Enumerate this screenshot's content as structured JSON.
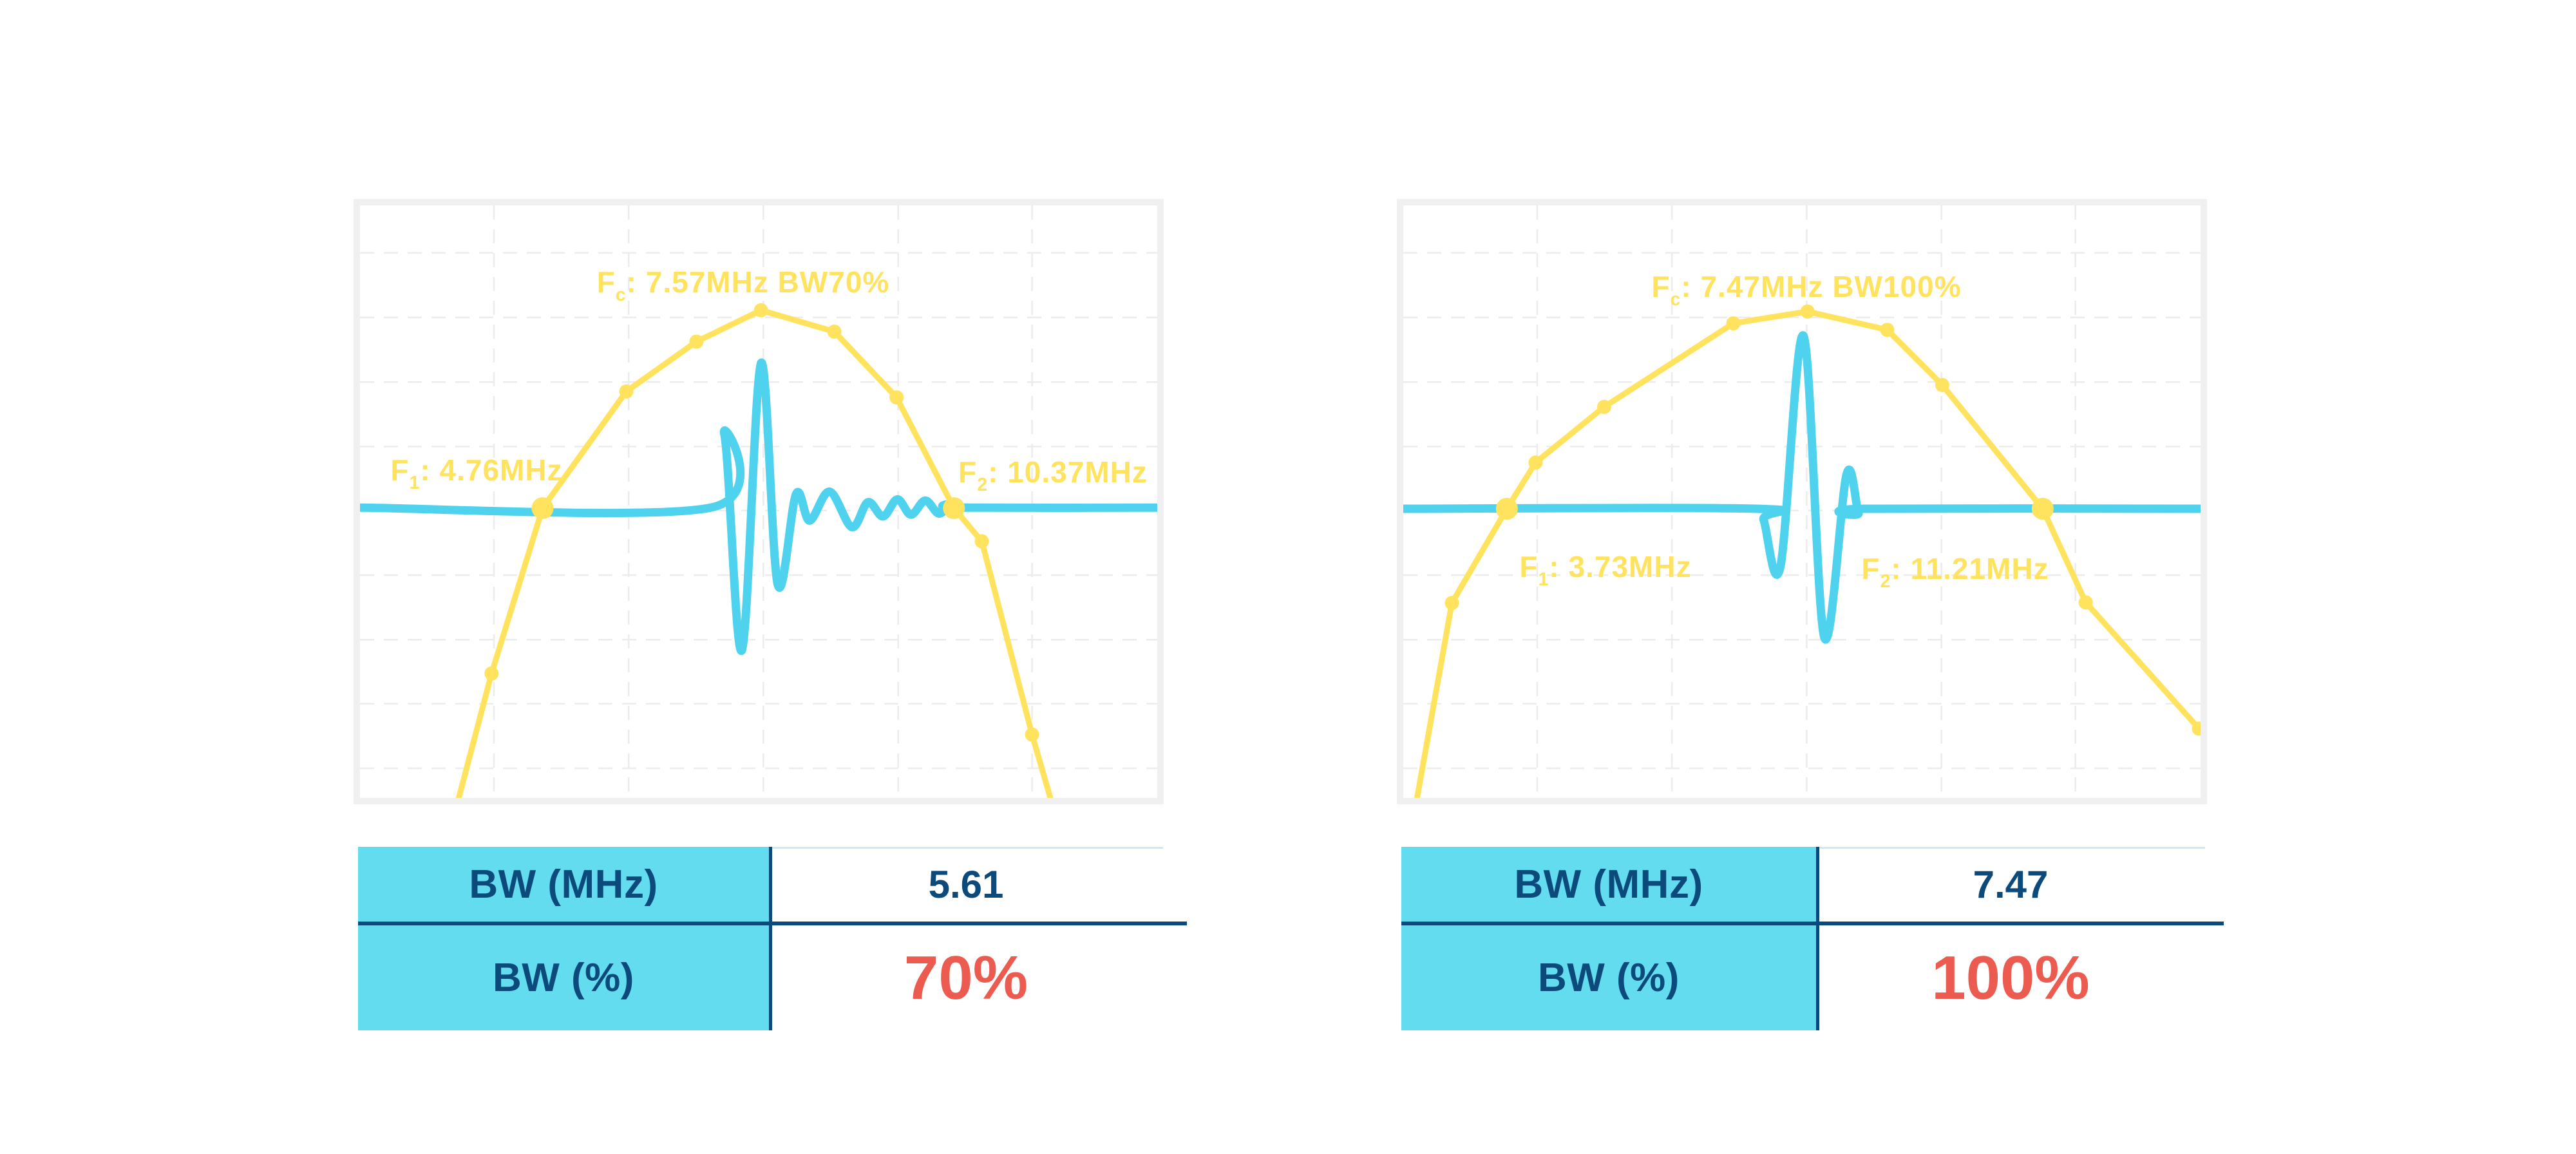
{
  "colors": {
    "spectrum_yellow": "#FFE35F",
    "wave_cyan": "#4FD2ED",
    "table_cyan": "#63DCEF",
    "navy": "#0B4A7A",
    "accent_red": "#EC5B50",
    "grid": "#ECECEC",
    "panel_border": "#F0F0F0",
    "pale_rule": "#CBEAF4"
  },
  "chart_data": [
    {
      "type": "line",
      "name": "pulse-spectrum-bw70",
      "fc_mhz": 7.57,
      "f1_mhz": 4.76,
      "f2_mhz": 10.37,
      "bw_mhz": 5.61,
      "bw_percent": 70,
      "labels": {
        "fc": {
          "prefix": "F",
          "sub": "c",
          "text": ": 7.57MHz BW70%",
          "x": 0.481,
          "y": 0.135
        },
        "f1": {
          "prefix": "F",
          "sub": "1",
          "text": ": 4.76MHz",
          "x": 0.146,
          "y": 0.452
        },
        "f2": {
          "prefix": "F",
          "sub": "2",
          "text": ": 10.37MHz",
          "x": 0.869,
          "y": 0.455
        }
      },
      "grid": {
        "v": [
          0.168,
          0.337,
          0.506,
          0.675,
          0.843
        ],
        "h": [
          0.08,
          0.189,
          0.298,
          0.407,
          0.515,
          0.624,
          0.733,
          0.841,
          0.95
        ]
      },
      "baseline_y": 0.51,
      "spectrum": {
        "points": [
          [
            0.122,
            1.01,
            0
          ],
          [
            0.165,
            0.79,
            1
          ],
          [
            0.229,
            0.511,
            2
          ],
          [
            0.334,
            0.314,
            1
          ],
          [
            0.422,
            0.23,
            1
          ],
          [
            0.503,
            0.177,
            1
          ],
          [
            0.595,
            0.213,
            1
          ],
          [
            0.673,
            0.324,
            1
          ],
          [
            0.745,
            0.511,
            2
          ],
          [
            0.78,
            0.567,
            1
          ],
          [
            0.843,
            0.893,
            1
          ],
          [
            0.868,
            1.01,
            0
          ]
        ]
      },
      "pulse": {
        "points": [
          [
            0.0,
            0.51
          ],
          [
            0.44,
            0.51
          ],
          [
            0.457,
            0.387
          ],
          [
            0.479,
            0.751
          ],
          [
            0.503,
            0.266
          ],
          [
            0.524,
            0.64
          ],
          [
            0.547,
            0.487
          ],
          [
            0.564,
            0.532
          ],
          [
            0.589,
            0.483
          ],
          [
            0.617,
            0.543
          ],
          [
            0.637,
            0.501
          ],
          [
            0.656,
            0.525
          ],
          [
            0.674,
            0.496
          ],
          [
            0.691,
            0.522
          ],
          [
            0.709,
            0.498
          ],
          [
            0.726,
            0.52
          ],
          [
            0.742,
            0.504
          ],
          [
            0.751,
            0.51
          ],
          [
            1.0,
            0.51
          ]
        ]
      }
    },
    {
      "type": "line",
      "name": "pulse-spectrum-bw100",
      "fc_mhz": 7.47,
      "f1_mhz": 3.73,
      "f2_mhz": 11.21,
      "bw_mhz": 7.47,
      "bw_percent": 100,
      "labels": {
        "fc": {
          "prefix": "F",
          "sub": "c",
          "text": ": 7.47MHz BW100%",
          "x": 0.506,
          "y": 0.142
        },
        "f1": {
          "prefix": "F",
          "sub": "1",
          "text": ": 3.73MHz",
          "x": 0.254,
          "y": 0.615
        },
        "f2": {
          "prefix": "F",
          "sub": "2",
          "text": ": 11.21MHz",
          "x": 0.692,
          "y": 0.618
        }
      },
      "grid": {
        "v": [
          0.168,
          0.337,
          0.506,
          0.675,
          0.843
        ],
        "h": [
          0.08,
          0.189,
          0.298,
          0.407,
          0.515,
          0.624,
          0.733,
          0.841,
          0.95
        ]
      },
      "baseline_y": 0.512,
      "spectrum": {
        "points": [
          [
            0.016,
            1.01,
            0
          ],
          [
            0.061,
            0.671,
            1
          ],
          [
            0.13,
            0.512,
            2
          ],
          [
            0.166,
            0.434,
            1
          ],
          [
            0.252,
            0.34,
            1
          ],
          [
            0.414,
            0.199,
            1
          ],
          [
            0.507,
            0.179,
            1
          ],
          [
            0.607,
            0.21,
            1
          ],
          [
            0.676,
            0.303,
            1
          ],
          [
            0.802,
            0.512,
            2
          ],
          [
            0.856,
            0.67,
            1
          ],
          [
            0.998,
            0.883,
            1
          ]
        ]
      },
      "pulse": {
        "points": [
          [
            0.0,
            0.512
          ],
          [
            0.443,
            0.512
          ],
          [
            0.452,
            0.531
          ],
          [
            0.473,
            0.61
          ],
          [
            0.502,
            0.22
          ],
          [
            0.528,
            0.729
          ],
          [
            0.556,
            0.454
          ],
          [
            0.571,
            0.519
          ],
          [
            0.579,
            0.512
          ],
          [
            1.0,
            0.512
          ]
        ]
      }
    }
  ],
  "tables": [
    {
      "rows": [
        {
          "label": "BW (MHz)",
          "value": "5.61"
        },
        {
          "label": "BW (%)",
          "value": "70%"
        }
      ]
    },
    {
      "rows": [
        {
          "label": "BW (MHz)",
          "value": "7.47"
        },
        {
          "label": "BW (%)",
          "value": "100%"
        }
      ]
    }
  ]
}
